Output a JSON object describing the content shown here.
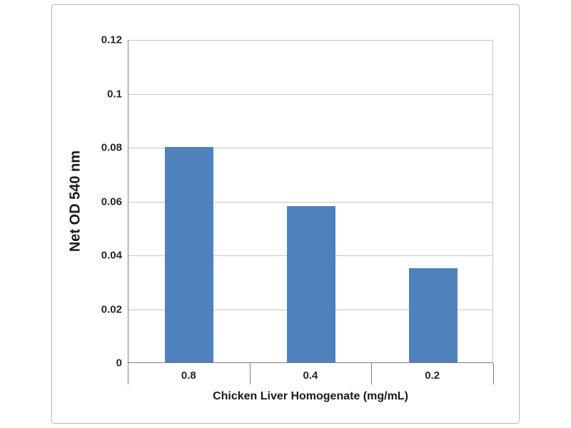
{
  "chart_data": {
    "type": "bar",
    "title": "",
    "categories": [
      "0.8",
      "0.4",
      "0.2"
    ],
    "values": [
      0.08,
      0.058,
      0.035
    ],
    "xlabel": "Chicken Liver Homogenate (mg/mL)",
    "ylabel": "Net OD 540 nm",
    "ylim": [
      0,
      0.12
    ],
    "yticks": [
      "0",
      "0.02",
      "0.04",
      "0.06",
      "0.08",
      "0.1",
      "0.12"
    ],
    "bar_color": "#4f81bd",
    "gridline_color": "#c6c6c6",
    "grid": true,
    "legend_position": "none"
  }
}
